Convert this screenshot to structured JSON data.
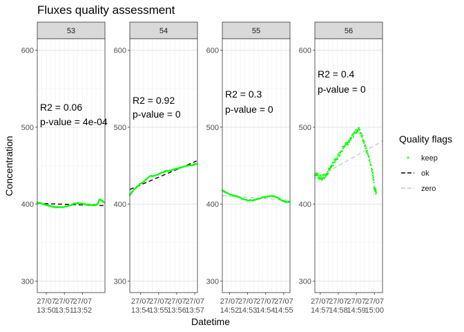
{
  "chart_data": {
    "type": "scatter",
    "title": "Fluxes quality assessment",
    "xlabel": "Datetime",
    "ylabel": "Concentration",
    "ylim": [
      285,
      615
    ],
    "y_ticks": [
      300,
      400,
      500,
      600
    ],
    "grid": true,
    "legend": {
      "title": "Quality flags",
      "position": "right",
      "entries": [
        {
          "label": "keep",
          "kind": "point",
          "color": "#00ff00"
        },
        {
          "label": "ok",
          "kind": "dashed-line",
          "color": "#000000"
        },
        {
          "label": "zero",
          "kind": "dashed-line",
          "color": "#c8c8c8"
        }
      ]
    },
    "panels": [
      {
        "strip": "53",
        "r2_label": "R2 = 0.06",
        "p_label": "p-value = 4e-04",
        "x_range_min": [
          0,
          3.75
        ],
        "x_ticks": [
          {
            "m": 0.5,
            "label": "27/07\n13:50"
          },
          {
            "m": 1.5,
            "label": "27/07\n13:51"
          },
          {
            "m": 2.5,
            "label": "27/07\n13:52"
          }
        ],
        "keep_curve": [
          [
            0,
            402
          ],
          [
            0.2,
            401
          ],
          [
            0.5,
            399
          ],
          [
            0.8,
            397
          ],
          [
            1.0,
            396
          ],
          [
            1.3,
            396
          ],
          [
            1.6,
            397
          ],
          [
            1.9,
            399
          ],
          [
            2.1,
            401
          ],
          [
            2.3,
            401
          ],
          [
            2.6,
            400
          ],
          [
            2.9,
            399
          ],
          [
            3.2,
            399
          ],
          [
            3.35,
            400
          ],
          [
            3.42,
            405
          ],
          [
            3.5,
            406
          ],
          [
            3.6,
            404
          ],
          [
            3.7,
            402
          ]
        ],
        "fit_line": {
          "series": "ok",
          "from": [
            0,
            401
          ],
          "to": [
            3.7,
            398
          ]
        }
      },
      {
        "strip": "54",
        "r2_label": "R2 = 0.92",
        "p_label": "p-value = 0",
        "x_range_min": [
          0,
          3.75
        ],
        "x_ticks": [
          {
            "m": 0.6,
            "label": "27/07\n13:54"
          },
          {
            "m": 1.6,
            "label": "27/07\n13:55"
          },
          {
            "m": 2.6,
            "label": "27/07\n13:56"
          },
          {
            "m": 3.6,
            "label": "27/07\n13:57"
          }
        ],
        "keep_curve": [
          [
            0,
            412
          ],
          [
            0.2,
            418
          ],
          [
            0.5,
            425
          ],
          [
            0.8,
            430
          ],
          [
            1.1,
            436
          ],
          [
            1.4,
            437
          ],
          [
            1.7,
            440
          ],
          [
            2.0,
            443
          ],
          [
            2.3,
            444
          ],
          [
            2.6,
            446
          ],
          [
            2.9,
            448
          ],
          [
            3.2,
            450
          ],
          [
            3.5,
            451
          ],
          [
            3.7,
            452
          ]
        ],
        "fit_line": {
          "series": "ok",
          "from": [
            0,
            419
          ],
          "to": [
            3.7,
            456
          ]
        }
      },
      {
        "strip": "55",
        "r2_label": "R2 = 0.3",
        "p_label": "p-value = 0",
        "x_range_min": [
          0,
          3.75
        ],
        "x_ticks": [
          {
            "m": 0.4,
            "label": "27/07\n14:52"
          },
          {
            "m": 1.4,
            "label": "27/07\n14:53"
          },
          {
            "m": 2.4,
            "label": "27/07\n14:54"
          },
          {
            "m": 3.4,
            "label": "27/07\n14:55"
          }
        ],
        "keep_curve": [
          [
            0,
            418
          ],
          [
            0.2,
            415
          ],
          [
            0.5,
            412
          ],
          [
            0.8,
            410
          ],
          [
            1.1,
            407
          ],
          [
            1.4,
            405
          ],
          [
            1.7,
            405
          ],
          [
            2.0,
            407
          ],
          [
            2.3,
            409
          ],
          [
            2.6,
            410
          ],
          [
            2.9,
            410
          ],
          [
            3.1,
            408
          ],
          [
            3.3,
            405
          ],
          [
            3.5,
            403
          ],
          [
            3.7,
            403
          ]
        ],
        "fit_line": {
          "series": "zero",
          "from": [
            0,
            411
          ],
          "to": [
            3.7,
            405
          ]
        }
      },
      {
        "strip": "56",
        "r2_label": "R2 = 0.4",
        "p_label": "p-value = 0",
        "x_range_min": [
          0,
          3.75
        ],
        "x_ticks": [
          {
            "m": 0.3,
            "label": "27/07\n14:57"
          },
          {
            "m": 1.3,
            "label": "27/07\n14:58"
          },
          {
            "m": 2.3,
            "label": "27/07\n14:59"
          },
          {
            "m": 3.3,
            "label": "27/07\n15:00"
          }
        ],
        "keep_curve": [
          [
            0,
            440
          ],
          [
            0.2,
            436
          ],
          [
            0.4,
            434
          ],
          [
            0.6,
            437
          ],
          [
            0.8,
            445
          ],
          [
            1.0,
            452
          ],
          [
            1.2,
            460
          ],
          [
            1.4,
            465
          ],
          [
            1.6,
            475
          ],
          [
            1.8,
            478
          ],
          [
            2.0,
            485
          ],
          [
            2.2,
            492
          ],
          [
            2.4,
            498
          ],
          [
            2.6,
            490
          ],
          [
            2.8,
            475
          ],
          [
            3.0,
            460
          ],
          [
            3.2,
            442
          ],
          [
            3.3,
            420
          ],
          [
            3.4,
            415
          ]
        ],
        "fit_line": {
          "series": "zero",
          "from": [
            0,
            433
          ],
          "to": [
            3.75,
            482
          ]
        }
      }
    ]
  }
}
